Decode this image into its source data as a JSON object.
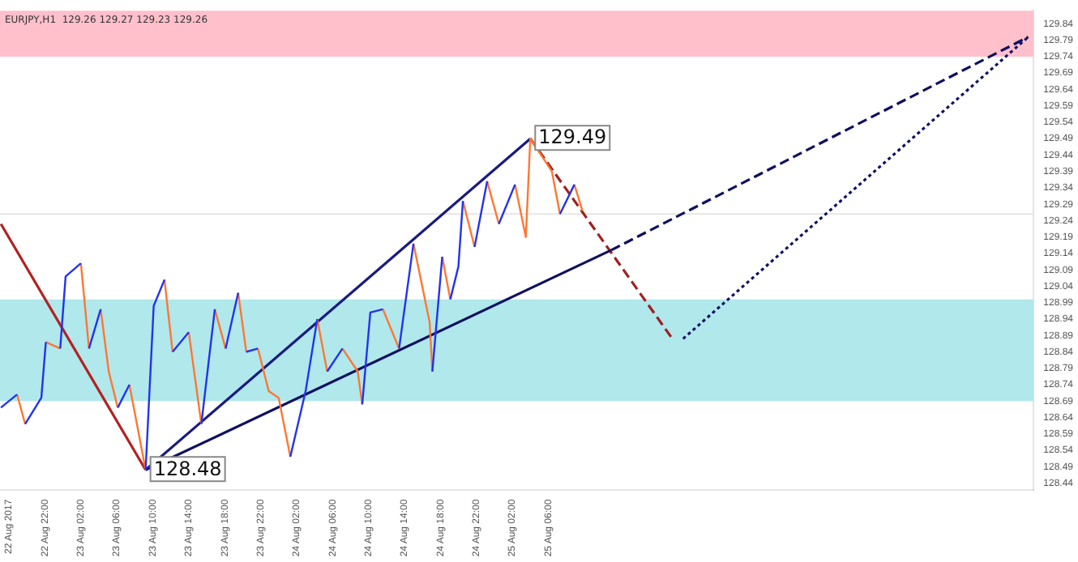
{
  "chart_data": {
    "type": "line",
    "title": "EURJPY,H1  129.26 129.27 129.23 129.26",
    "marker": "none",
    "xlim": [
      "2017-08-22T17:00",
      "2017-08-27T12:00"
    ],
    "xticks": [
      {
        "value": "2017-08-22T18:00",
        "label": "22 Aug 2017"
      },
      {
        "value": "2017-08-22T22:00",
        "label": "22 Aug 22:00"
      },
      {
        "value": "2017-08-23T02:00",
        "label": "23 Aug 02:00"
      },
      {
        "value": "2017-08-23T06:00",
        "label": "23 Aug 06:00"
      },
      {
        "value": "2017-08-23T10:00",
        "label": "23 Aug 10:00"
      },
      {
        "value": "2017-08-23T14:00",
        "label": "23 Aug 14:00"
      },
      {
        "value": "2017-08-23T18:00",
        "label": "23 Aug 18:00"
      },
      {
        "value": "2017-08-23T22:00",
        "label": "23 Aug 22:00"
      },
      {
        "value": "2017-08-24T02:00",
        "label": "24 Aug 02:00"
      },
      {
        "value": "2017-08-24T06:00",
        "label": "24 Aug 06:00"
      },
      {
        "value": "2017-08-24T10:00",
        "label": "24 Aug 10:00"
      },
      {
        "value": "2017-08-24T14:00",
        "label": "24 Aug 14:00"
      },
      {
        "value": "2017-08-24T18:00",
        "label": "24 Aug 18:00"
      },
      {
        "value": "2017-08-24T22:00",
        "label": "24 Aug 22:00"
      },
      {
        "value": "2017-08-25T02:00",
        "label": "25 Aug 02:00"
      },
      {
        "value": "2017-08-25T06:00",
        "label": "25 Aug 06:00"
      }
    ],
    "ylim": [
      128.42,
      129.88
    ],
    "yticks": [
      128.44,
      128.49,
      128.54,
      128.59,
      128.64,
      128.69,
      128.74,
      128.79,
      128.84,
      128.89,
      128.94,
      128.99,
      129.04,
      129.09,
      129.14,
      129.19,
      129.24,
      129.29,
      129.34,
      129.39,
      129.44,
      129.49,
      129.54,
      129.59,
      129.64,
      129.69,
      129.74,
      129.79,
      129.84
    ],
    "bands": [
      {
        "axis": "y",
        "from": 129.74,
        "to": 129.88,
        "color": "#ffc0cb"
      },
      {
        "axis": "y",
        "from": 128.69,
        "to": 129.0,
        "color": "#b0e8ec"
      }
    ],
    "ref_lines": [
      {
        "axis": "y",
        "value": 129.26,
        "color": "#e6e6e6"
      }
    ],
    "annotations": [
      {
        "text": "129.49",
        "x": "2017-08-25T04:00",
        "y": 129.49
      },
      {
        "text": "128.48",
        "x": "2017-08-23T09:12",
        "y": 128.48
      }
    ],
    "series": [
      {
        "color": "#2233ee",
        "x": [
          "2017-08-22T17:06",
          "2017-08-22T18:54",
          null,
          "2017-08-22T19:48",
          "2017-08-22T21:36",
          "2017-08-22T22:06",
          null,
          "2017-08-22T23:42",
          "2017-08-23T00:18",
          "2017-08-23T02:00",
          null,
          "2017-08-23T02:54",
          "2017-08-23T04:12",
          null,
          "2017-08-23T06:06",
          "2017-08-23T07:24",
          null,
          "2017-08-23T09:12",
          "2017-08-23T10:06",
          "2017-08-23T11:18",
          null,
          "2017-08-23T12:12",
          "2017-08-23T14:00",
          null,
          "2017-08-23T15:24",
          "2017-08-23T16:54",
          null,
          "2017-08-23T18:06",
          "2017-08-23T19:30",
          null,
          "2017-08-23T20:24",
          "2017-08-23T21:42",
          null,
          "2017-08-24T01:18",
          "2017-08-24T03:00",
          "2017-08-24T04:18",
          null,
          "2017-08-24T05:24",
          "2017-08-24T07:06",
          null,
          "2017-08-24T09:18",
          "2017-08-24T10:12",
          "2017-08-24T11:36",
          null,
          "2017-08-24T13:24",
          "2017-08-24T15:00",
          null,
          "2017-08-24T17:06",
          "2017-08-24T18:12",
          null,
          "2017-08-24T19:06",
          "2017-08-24T20:00",
          "2017-08-24T20:30",
          null,
          "2017-08-24T21:48",
          "2017-08-24T23:12",
          null,
          "2017-08-25T00:30",
          "2017-08-25T02:18",
          null,
          "2017-08-25T07:18",
          "2017-08-25T08:54"
        ],
        "values": [
          128.67,
          128.71,
          null,
          128.62,
          128.7,
          128.87,
          null,
          128.85,
          129.07,
          129.11,
          null,
          128.85,
          128.97,
          null,
          128.67,
          128.74,
          null,
          128.48,
          128.98,
          129.06,
          null,
          128.84,
          128.9,
          null,
          128.62,
          128.97,
          null,
          128.85,
          129.02,
          null,
          128.84,
          128.85,
          null,
          128.52,
          128.72,
          128.94,
          null,
          128.78,
          128.85,
          null,
          128.68,
          128.96,
          128.97,
          null,
          128.85,
          129.17,
          null,
          128.78,
          129.13,
          null,
          129.0,
          129.1,
          129.3,
          null,
          129.16,
          129.36,
          null,
          129.23,
          129.35,
          null,
          129.26,
          129.35
        ]
      },
      {
        "color": "#ff7733",
        "x": [
          "2017-08-22T18:54",
          "2017-08-22T19:48",
          null,
          "2017-08-22T22:06",
          "2017-08-22T23:42",
          null,
          "2017-08-23T02:00",
          "2017-08-23T02:54",
          null,
          "2017-08-23T04:12",
          "2017-08-23T05:06",
          "2017-08-23T06:06",
          null,
          "2017-08-23T07:24",
          "2017-08-23T09:12",
          null,
          "2017-08-23T11:18",
          "2017-08-23T12:12",
          null,
          "2017-08-23T14:00",
          "2017-08-23T15:24",
          null,
          "2017-08-23T16:54",
          "2017-08-23T18:06",
          null,
          "2017-08-23T19:30",
          "2017-08-23T20:24",
          null,
          "2017-08-23T21:42",
          "2017-08-23T22:54",
          "2017-08-24T00:00",
          "2017-08-24T01:18",
          null,
          "2017-08-24T04:18",
          "2017-08-24T05:24",
          null,
          "2017-08-24T07:06",
          "2017-08-24T08:48",
          "2017-08-24T09:18",
          null,
          "2017-08-24T11:36",
          "2017-08-24T13:24",
          null,
          "2017-08-24T15:00",
          "2017-08-24T16:48",
          "2017-08-24T17:06",
          null,
          "2017-08-24T18:12",
          "2017-08-24T19:06",
          null,
          "2017-08-24T20:30",
          "2017-08-24T21:48",
          null,
          "2017-08-24T23:12",
          "2017-08-25T00:30",
          null,
          "2017-08-25T02:18",
          "2017-08-25T03:30",
          "2017-08-25T04:00",
          "2017-08-25T06:24",
          "2017-08-25T07:18",
          null,
          "2017-08-25T08:54",
          "2017-08-25T09:48"
        ],
        "values": [
          128.71,
          128.62,
          null,
          128.87,
          128.85,
          null,
          129.11,
          128.85,
          null,
          128.97,
          128.78,
          128.67,
          null,
          128.74,
          128.48,
          null,
          129.06,
          128.84,
          null,
          128.9,
          128.62,
          null,
          128.97,
          128.85,
          null,
          129.02,
          128.84,
          null,
          128.85,
          128.72,
          128.7,
          128.52,
          null,
          128.94,
          128.78,
          null,
          128.85,
          128.78,
          128.68,
          null,
          128.97,
          128.85,
          null,
          129.17,
          128.93,
          128.78,
          null,
          129.13,
          129.0,
          null,
          129.3,
          129.16,
          null,
          129.36,
          129.23,
          null,
          129.35,
          129.19,
          129.49,
          129.39,
          129.26,
          null,
          129.35,
          129.27
        ]
      },
      {
        "color": "#b22222",
        "line_style": "solid",
        "x": [
          "2017-08-22T17:06",
          "2017-08-23T09:12"
        ],
        "values": [
          129.23,
          128.48
        ]
      },
      {
        "color": "#1a1a80",
        "line_style": "solid",
        "x": [
          "2017-08-23T09:12",
          "2017-08-25T04:00"
        ],
        "values": [
          128.48,
          129.49
        ]
      },
      {
        "color": "#101060",
        "line_style": "solid",
        "x": [
          "2017-08-23T09:12",
          "2017-08-25T13:00"
        ],
        "values": [
          128.48,
          129.15
        ]
      },
      {
        "color": "#101060",
        "line_style": "dashed",
        "x": [
          "2017-08-25T13:00",
          "2017-08-27T11:24"
        ],
        "values": [
          129.15,
          129.8
        ]
      },
      {
        "color": "#a02020",
        "line_style": "dashed",
        "x": [
          "2017-08-25T04:00",
          "2017-08-25T19:48"
        ],
        "values": [
          129.49,
          128.88
        ]
      },
      {
        "color": "#101060",
        "line_style": "dotted",
        "x": [
          "2017-08-25T21:00",
          "2017-08-27T11:24"
        ],
        "values": [
          128.88,
          129.8
        ]
      }
    ]
  }
}
